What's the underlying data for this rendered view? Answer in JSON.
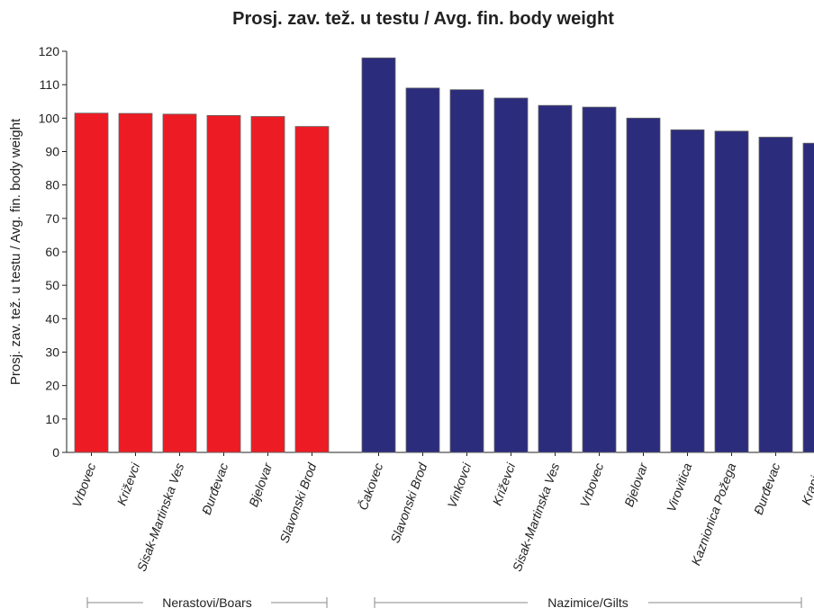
{
  "chart_data": {
    "type": "bar",
    "title": "Prosj. zav. tež. u testu / Avg. fin. body weight",
    "xlabel": "",
    "ylabel": "Prosj. zav. tež. u testu / Avg. fin. body weight",
    "ylim": [
      0,
      120
    ],
    "yticks": [
      0,
      10,
      20,
      30,
      40,
      50,
      60,
      70,
      80,
      90,
      100,
      110,
      120
    ],
    "grid": false,
    "legend": "none",
    "groups": [
      {
        "label": "Nerastovi/Boars",
        "color": "#ED1C24",
        "categories": [
          "Vrbovec",
          "Križevci",
          "Sisak-Martinska Ves",
          "Đurđevac",
          "Bjelovar",
          "Slavonski Brod"
        ],
        "values": [
          101.5,
          101.4,
          101.2,
          100.8,
          100.5,
          97.5
        ]
      },
      {
        "label": "Nazimice/Gilts",
        "color": "#2B2C7C",
        "categories": [
          "Čakovec",
          "Slavonski Brod",
          "Vinkovci",
          "Križevci",
          "Sisak-Martinska Ves",
          "Vrbovec",
          "Bjelovar",
          "Virovitica",
          "Kaznionica Požega",
          "Đurđevac",
          "Krapina"
        ],
        "values": [
          118,
          109,
          108.5,
          106,
          103.8,
          103.3,
          100,
          96.5,
          96.1,
          94.3,
          92.5
        ]
      }
    ]
  }
}
